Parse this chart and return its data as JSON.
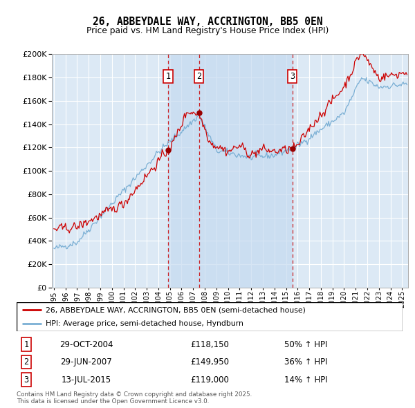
{
  "title": "26, ABBEYDALE WAY, ACCRINGTON, BB5 0EN",
  "subtitle": "Price paid vs. HM Land Registry's House Price Index (HPI)",
  "legend_line1": "26, ABBEYDALE WAY, ACCRINGTON, BB5 0EN (semi-detached house)",
  "legend_line2": "HPI: Average price, semi-detached house, Hyndburn",
  "transactions": [
    {
      "num": 1,
      "date": "29-OCT-2004",
      "price": 118150,
      "pct": "50%",
      "dir": "↑"
    },
    {
      "num": 2,
      "date": "29-JUN-2007",
      "price": 149950,
      "pct": "36%",
      "dir": "↑"
    },
    {
      "num": 3,
      "date": "13-JUL-2015",
      "price": 119000,
      "pct": "14%",
      "dir": "↑"
    }
  ],
  "footer": "Contains HM Land Registry data © Crown copyright and database right 2025.\nThis data is licensed under the Open Government Licence v3.0.",
  "price_line_color": "#cc0000",
  "hpi_line_color": "#7aafd4",
  "background_color": "#dce9f5",
  "shade_color": "#c5daf0",
  "vline_color": "#cc0000",
  "box_color": "#cc0000",
  "ylim": [
    0,
    200000
  ],
  "ytick_step": 20000,
  "xstart_year": 1995,
  "xend_year": 2025
}
